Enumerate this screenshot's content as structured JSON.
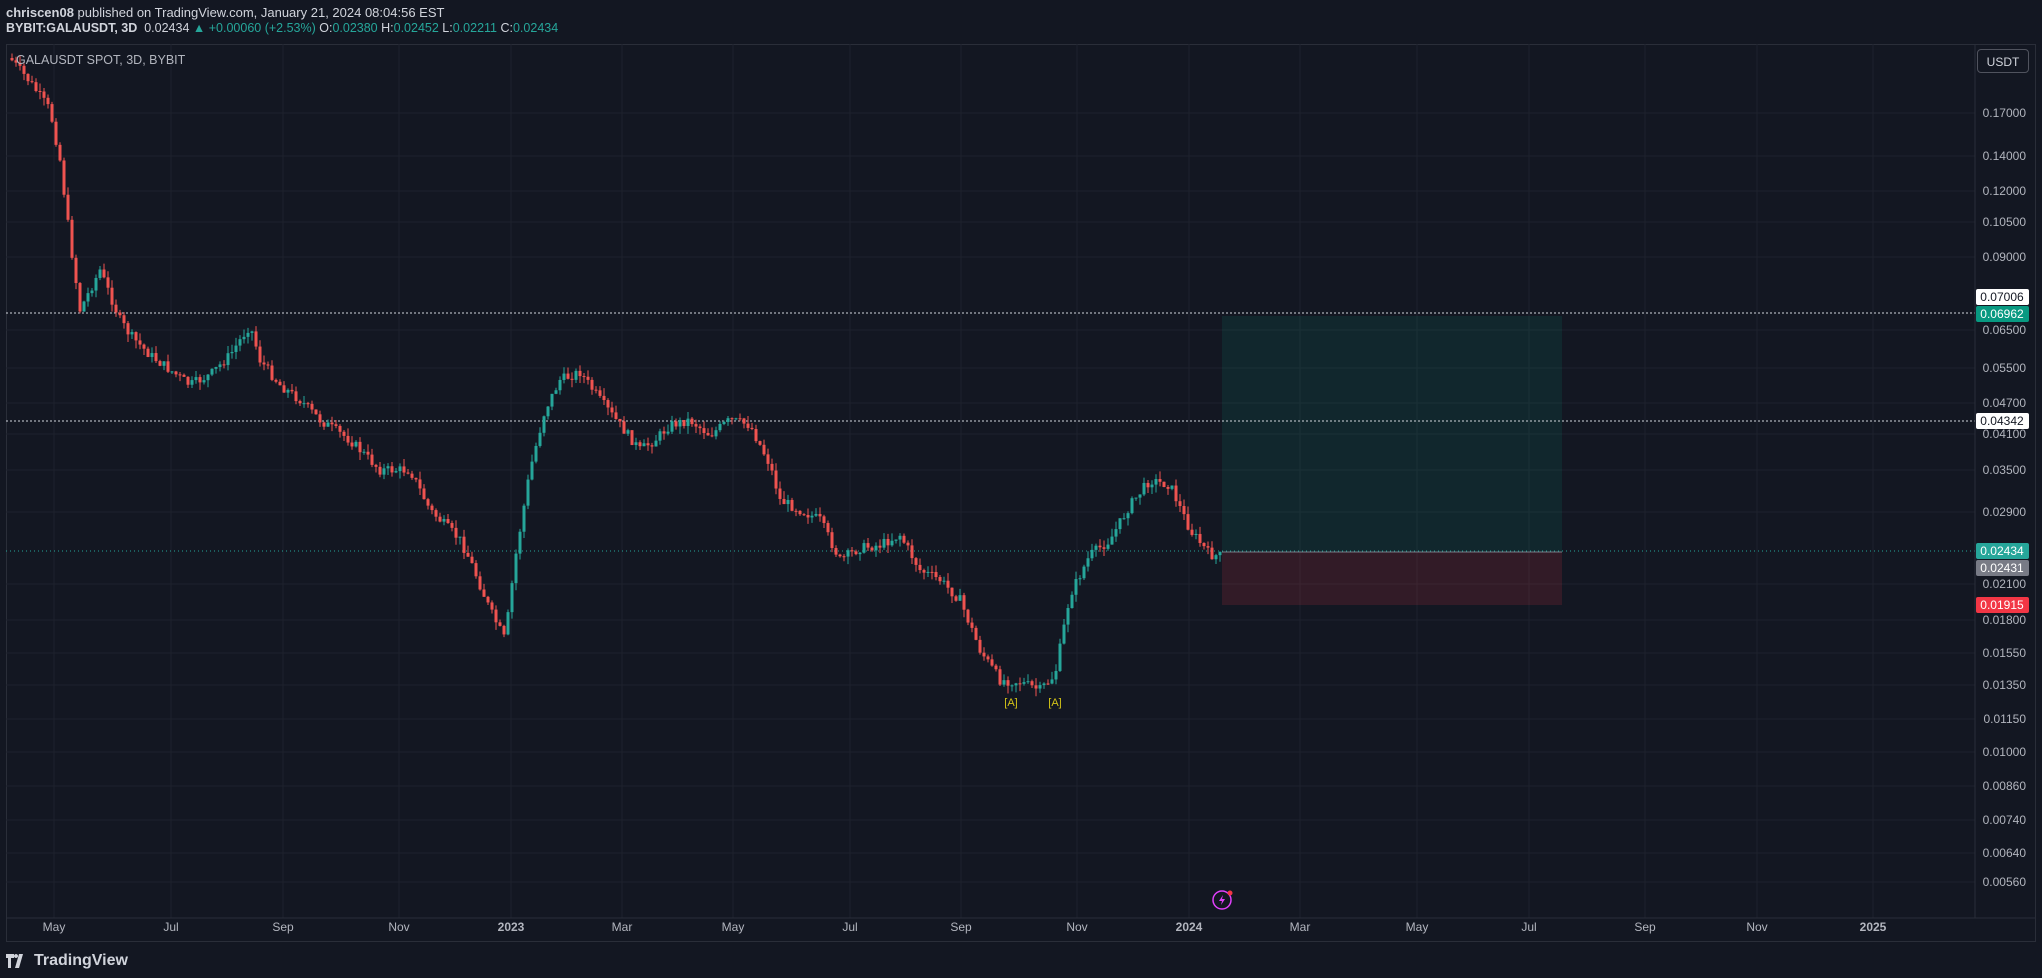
{
  "publish": {
    "author": "chriscen08",
    "text": " published on TradingView.com, January 21, 2024 08:04:56 EST"
  },
  "header": {
    "symbol": "BYBIT:GALAUSDT, 3D",
    "last": "0.02434",
    "change": "▲ +0.00060 (+2.53%)",
    "o_label": "O:",
    "o": "0.02380",
    "h_label": "H:",
    "h": "0.02452",
    "l_label": "L:",
    "l": "0.02211",
    "c_label": "C:",
    "c": "0.02434"
  },
  "pane_title": "GALAUSDT SPOT, 3D, BYBIT",
  "currency": "USDT",
  "footer": {
    "brand": "TradingView"
  },
  "price_axis": {
    "labels": [
      "0.17000",
      "0.14000",
      "0.12000",
      "0.10500",
      "0.09000",
      "0.06500",
      "0.05500",
      "0.04700",
      "0.04100",
      "0.03500",
      "0.02900",
      "0.02100",
      "0.01800",
      "0.01550",
      "0.01350",
      "0.01150",
      "0.01000",
      "0.00860",
      "0.00740",
      "0.00640",
      "0.00560"
    ]
  },
  "price_tags": [
    {
      "value": "0.07006",
      "bg": "#ffffff",
      "fg": "#131722"
    },
    {
      "value": "0.06962",
      "bg": "#089981",
      "fg": "#ffffff"
    },
    {
      "value": "0.04342",
      "bg": "#ffffff",
      "fg": "#131722"
    },
    {
      "value": "0.02434",
      "bg": "#26a69a",
      "fg": "#ffffff"
    },
    {
      "value": "0.02431",
      "bg": "#787b86",
      "fg": "#ffffff"
    },
    {
      "value": "0.01915",
      "bg": "#f23645",
      "fg": "#ffffff"
    }
  ],
  "time_axis": {
    "labels": [
      "May",
      "Jul",
      "Sep",
      "Nov",
      "2023",
      "Mar",
      "May",
      "Jul",
      "Sep",
      "Nov",
      "2024",
      "Mar",
      "May",
      "Jul",
      "Sep",
      "Nov",
      "2025"
    ],
    "bold": [
      "2023",
      "2024",
      "2025"
    ]
  },
  "markers": [
    "[A]",
    "[A]"
  ],
  "colors": {
    "up": "#26a69a",
    "down": "#ef5350",
    "bg": "#131722",
    "grid": "#1e222d",
    "marker": "#d4c418"
  }
}
